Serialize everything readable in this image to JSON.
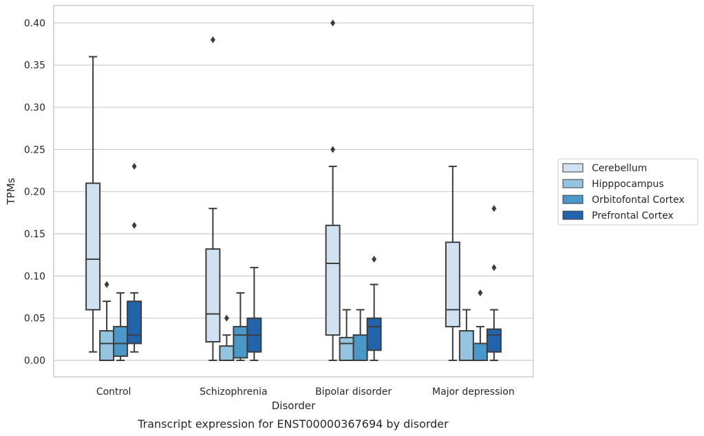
{
  "caption": "Transcript expression for ENST00000367694 by disorder",
  "chart_data": {
    "type": "box",
    "xlabel": "Disorder",
    "ylabel": "TPMs",
    "ylim": [
      -0.019,
      0.42
    ],
    "yticks": [
      "0.00",
      "0.05",
      "0.10",
      "0.15",
      "0.20",
      "0.25",
      "0.30",
      "0.35",
      "0.40"
    ],
    "grid": "horizontal",
    "legend_placement": "right",
    "categories": [
      "Control",
      "Schizophrenia",
      "Bipolar disorder",
      "Major depression"
    ],
    "series": [
      {
        "name": "Cerebellum",
        "color": "#d0e1f2",
        "boxes": [
          {
            "whislo": 0.01,
            "q1": 0.06,
            "med": 0.12,
            "q3": 0.21,
            "whishi": 0.36,
            "fliers": []
          },
          {
            "whislo": 0.0,
            "q1": 0.022,
            "med": 0.055,
            "q3": 0.132,
            "whishi": 0.18,
            "fliers": [
              0.38
            ]
          },
          {
            "whislo": 0.0,
            "q1": 0.03,
            "med": 0.115,
            "q3": 0.16,
            "whishi": 0.23,
            "fliers": [
              0.25,
              0.4
            ]
          },
          {
            "whislo": 0.0,
            "q1": 0.04,
            "med": 0.06,
            "q3": 0.14,
            "whishi": 0.23,
            "fliers": []
          }
        ]
      },
      {
        "name": "Hipppocampus",
        "color": "#94c4df",
        "boxes": [
          {
            "whislo": 0.0,
            "q1": 0.0,
            "med": 0.02,
            "q3": 0.035,
            "whishi": 0.07,
            "fliers": [
              0.09
            ]
          },
          {
            "whislo": 0.0,
            "q1": 0.0,
            "med": 0.0,
            "q3": 0.017,
            "whishi": 0.03,
            "fliers": [
              0.05
            ]
          },
          {
            "whislo": 0.0,
            "q1": 0.0,
            "med": 0.02,
            "q3": 0.027,
            "whishi": 0.06,
            "fliers": []
          },
          {
            "whislo": 0.0,
            "q1": 0.0,
            "med": 0.0,
            "q3": 0.035,
            "whishi": 0.06,
            "fliers": []
          }
        ]
      },
      {
        "name": "Orbitofontal Cortex",
        "color": "#4a98c9",
        "boxes": [
          {
            "whislo": 0.0,
            "q1": 0.005,
            "med": 0.02,
            "q3": 0.04,
            "whishi": 0.08,
            "fliers": []
          },
          {
            "whislo": 0.0,
            "q1": 0.003,
            "med": 0.03,
            "q3": 0.04,
            "whishi": 0.08,
            "fliers": []
          },
          {
            "whislo": 0.0,
            "q1": 0.0,
            "med": 0.0,
            "q3": 0.03,
            "whishi": 0.06,
            "fliers": []
          },
          {
            "whislo": 0.0,
            "q1": 0.0,
            "med": 0.0,
            "q3": 0.02,
            "whishi": 0.04,
            "fliers": [
              0.08
            ]
          }
        ]
      },
      {
        "name": "Prefrontal Cortex",
        "color": "#2164ab",
        "boxes": [
          {
            "whislo": 0.01,
            "q1": 0.02,
            "med": 0.03,
            "q3": 0.07,
            "whishi": 0.08,
            "fliers": [
              0.16,
              0.23
            ]
          },
          {
            "whislo": 0.0,
            "q1": 0.01,
            "med": 0.03,
            "q3": 0.05,
            "whishi": 0.11,
            "fliers": []
          },
          {
            "whislo": 0.0,
            "q1": 0.012,
            "med": 0.04,
            "q3": 0.05,
            "whishi": 0.09,
            "fliers": [
              0.12
            ]
          },
          {
            "whislo": 0.0,
            "q1": 0.01,
            "med": 0.03,
            "q3": 0.037,
            "whishi": 0.06,
            "fliers": [
              0.11,
              0.18
            ]
          }
        ]
      }
    ]
  }
}
